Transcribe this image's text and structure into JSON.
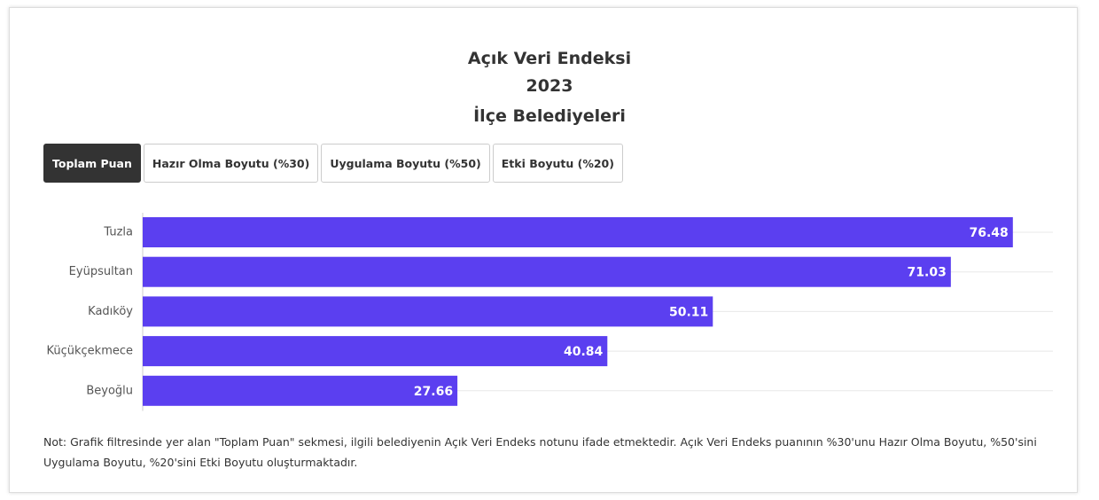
{
  "chart_data": {
    "type": "bar",
    "orientation": "horizontal",
    "title": [
      "Açık Veri Endeksi",
      "2023",
      "İlçe Belediyeleri"
    ],
    "tabs": [
      "Toplam Puan",
      "Hazır Olma Boyutu (%30)",
      "Uygulama Boyutu (%50)",
      "Etki Boyutu (%20)"
    ],
    "categories": [
      "Tuzla",
      "Eyüpsultan",
      "Kadıköy",
      "Küçükçekmece",
      "Beyoğlu"
    ],
    "values": [
      76.48,
      71.03,
      50.11,
      40.84,
      27.66
    ],
    "color": "#5b3ff0",
    "xlim": [
      0,
      80
    ],
    "note": "Not: Grafik filtresinde yer alan \"Toplam Puan\" sekmesi, ilgili belediyenin Açık Veri Endeks notunu ifade etmektedir. Açık Veri Endeks puanının %30'unu Hazır Olma Boyutu, %50'sini Uygulama Boyutu, %20'sini Etki Boyutu oluşturmaktadır."
  }
}
